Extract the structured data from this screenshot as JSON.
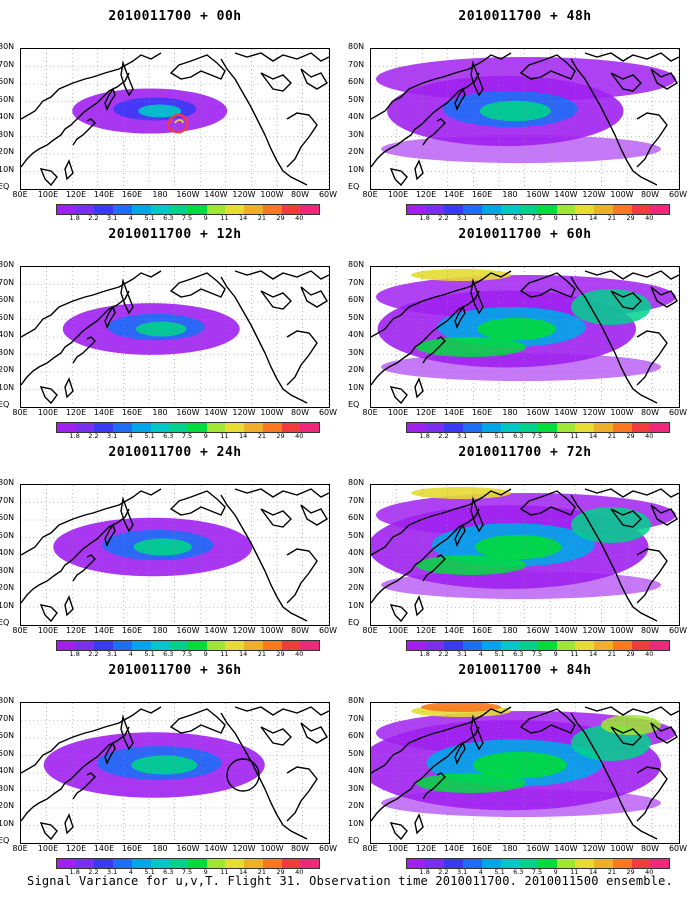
{
  "panels": [
    {
      "title": "2010011700 + 00h",
      "intensity": 0.25,
      "ring": true,
      "circle": false
    },
    {
      "title": "2010011700 + 12h",
      "intensity": 0.35,
      "ring": false,
      "circle": false
    },
    {
      "title": "2010011700 + 24h",
      "intensity": 0.45,
      "ring": false,
      "circle": false
    },
    {
      "title": "2010011700 + 36h",
      "intensity": 0.55,
      "ring": false,
      "circle": true
    },
    {
      "title": "2010011700 + 48h",
      "intensity": 0.62,
      "ring": false,
      "circle": false
    },
    {
      "title": "2010011700 + 60h",
      "intensity": 0.72,
      "ring": false,
      "circle": false
    },
    {
      "title": "2010011700 + 72h",
      "intensity": 0.82,
      "ring": false,
      "circle": false
    },
    {
      "title": "2010011700 + 84h",
      "intensity": 0.92,
      "ring": false,
      "circle": false
    }
  ],
  "lat_labels": [
    "80N",
    "70N",
    "60N",
    "50N",
    "40N",
    "30N",
    "20N",
    "10N",
    "EQ"
  ],
  "lon_labels": [
    "80E",
    "100E",
    "120E",
    "140E",
    "160E",
    "180",
    "160W",
    "140W",
    "120W",
    "100W",
    "80W",
    "60W"
  ],
  "colorbar": {
    "labels": [
      "1.8",
      "2.2",
      "3.1",
      "4",
      "5.1",
      "6.3",
      "7.5",
      "9",
      "11",
      "14",
      "21",
      "29",
      "40"
    ],
    "colors": [
      "#a020f0",
      "#7a2ef0",
      "#3a3af5",
      "#1e6ef5",
      "#00a6e8",
      "#00c8c8",
      "#00d28c",
      "#00dc3c",
      "#a0e632",
      "#e6dc32",
      "#f0af28",
      "#fa7820",
      "#f03c3c",
      "#f0287a"
    ]
  },
  "caption": "Signal Variance for u,v,T. Flight 31. Observation time 2010011700. 2010011500 ensemble."
}
